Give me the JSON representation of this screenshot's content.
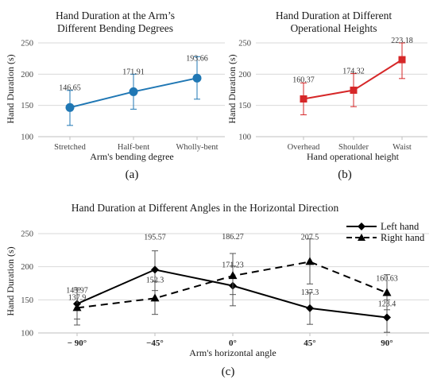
{
  "chart_data": [
    {
      "type": "line",
      "title": "Hand Duration at the Arm's Different Bending Degrees",
      "title_lines": [
        "Hand Duration at the Arm’s",
        "Different Bending Degrees"
      ],
      "xlabel": "Arm's bending degree",
      "ylabel": "Hand Duration (s)",
      "ylim": [
        100,
        250
      ],
      "yticks": [
        "100",
        "150",
        "200",
        "250"
      ],
      "categories": [
        "Stretched",
        "Half-bent",
        "Wholly-bent"
      ],
      "values": [
        146.65,
        171.91,
        193.66
      ],
      "value_labels": [
        "146.65",
        "171.91",
        "193.66"
      ],
      "error_low": [
        118,
        144,
        160
      ],
      "error_high": [
        174,
        200,
        228
      ],
      "color": "#1f77b4",
      "marker": "circle",
      "caption": "(a)"
    },
    {
      "type": "line",
      "title": "Hand Duration at Different Operational Heights",
      "title_lines": [
        "Hand Duration at Different",
        "Operational Heights"
      ],
      "xlabel": "Hand operational height",
      "ylabel": "Hand Duration (s)",
      "ylim": [
        100,
        250
      ],
      "yticks": [
        "100",
        "150",
        "200",
        "250"
      ],
      "categories": [
        "Overhead",
        "Shoulder",
        "Waist"
      ],
      "values": [
        160.37,
        174.32,
        223.18
      ],
      "value_labels": [
        "160.37",
        "174.32",
        "223.18"
      ],
      "error_low": [
        135,
        148,
        193
      ],
      "error_high": [
        186,
        201,
        250
      ],
      "color": "#d62728",
      "marker": "square",
      "caption": "(b)"
    },
    {
      "type": "line",
      "title": "Hand Duration at Different Angles in the Horizontal Direction",
      "xlabel": "Arm's horizontal angle",
      "ylabel": "Hand Duration (s)",
      "ylim": [
        100,
        250
      ],
      "yticks": [
        "100",
        "150",
        "200",
        "250"
      ],
      "categories": [
        "− 90°",
        "−45°",
        "0°",
        "45°",
        "90°"
      ],
      "series": [
        {
          "name": "Left hand",
          "values": [
            143.97,
            195.57,
            171.23,
            137.3,
            123.4
          ],
          "value_labels": [
            "143.97",
            "195.57",
            "171.23",
            "137.3",
            "123.4"
          ],
          "error_low": [
            121,
            164,
            141,
            113,
            101
          ],
          "error_high": [
            168,
            224,
            201,
            161,
            150
          ],
          "marker": "diamond",
          "dash": "solid"
        },
        {
          "name": "Right hand",
          "values": [
            137.9,
            152.3,
            186.27,
            207.5,
            160.63
          ],
          "value_labels": [
            "137.9",
            "152.3",
            "186.27",
            "207.5",
            "160.63"
          ],
          "error_low": [
            112,
            128,
            158,
            174,
            135
          ],
          "error_high": [
            165,
            178,
            220,
            242,
            188
          ],
          "marker": "triangle",
          "dash": "dashed"
        }
      ],
      "legend_position": "top-right",
      "caption": "(c)"
    }
  ]
}
